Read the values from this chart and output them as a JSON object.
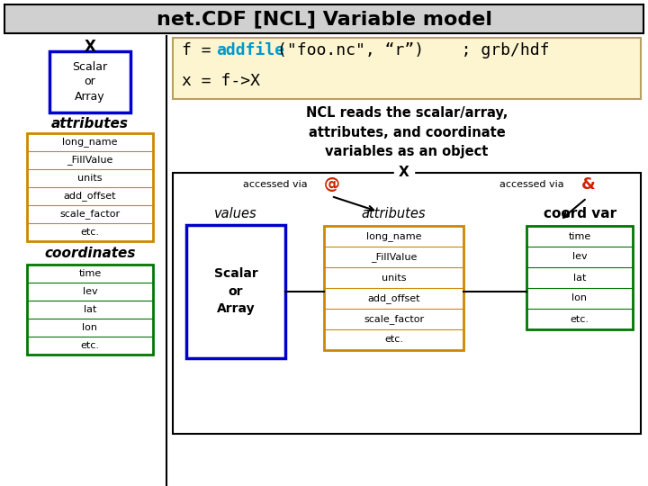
{
  "title": "net.CDF [NCL] Variable model",
  "bg_color": "#ffffff",
  "title_bg": "#d0d0d0",
  "cream_box_color": "#fdf5d0",
  "cream_box_border": "#b8a060",
  "blue_box_border": "#0000cc",
  "orange_box_border": "#cc8800",
  "green_box_border": "#007700",
  "black_border": "#000000",
  "addfile_color": "#0099cc",
  "ampersand_color": "#cc2200",
  "at_color": "#cc2200",
  "attr_items": [
    "long_name",
    "_FillValue",
    "units",
    "add_offset",
    "scale_factor",
    "etc."
  ],
  "coord_items": [
    "time",
    "lev",
    "lat",
    "lon",
    "etc."
  ],
  "attr_items2": [
    "long_name",
    "_FillValue",
    "units",
    "add_offset",
    "scale_factor",
    "etc."
  ],
  "coord_items2": [
    "time",
    "lev",
    "lat",
    "lon",
    "etc."
  ]
}
